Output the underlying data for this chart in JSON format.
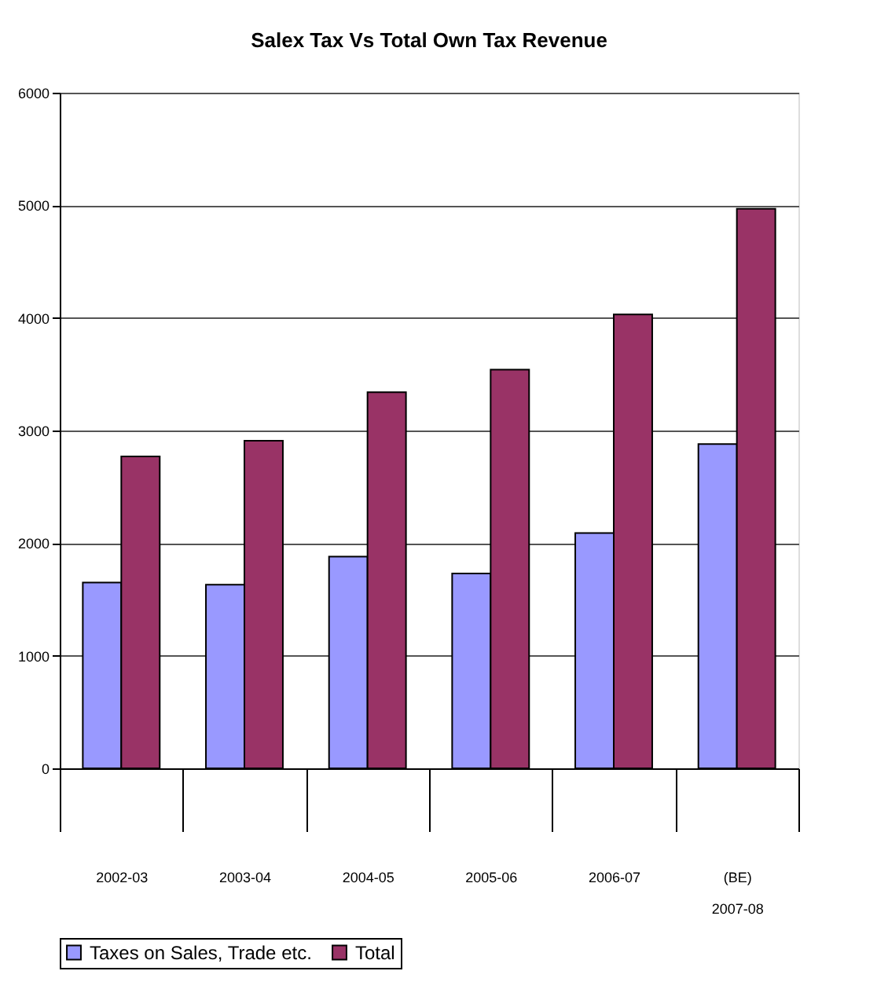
{
  "chart_data": {
    "type": "bar",
    "title": "Salex Tax Vs Total Own Tax Revenue",
    "categories": [
      "2002-03",
      "2003-04",
      "2004-05",
      "2005-06",
      "2006-07",
      "(BE)\n2007-08"
    ],
    "series": [
      {
        "name": "Taxes on Sales, Trade etc.",
        "color": "#9999ff",
        "values": [
          1650,
          1630,
          1880,
          1730,
          2090,
          2880
        ]
      },
      {
        "name": "Total",
        "color": "#993366",
        "values": [
          2770,
          2910,
          3340,
          3540,
          4030,
          4970
        ]
      }
    ],
    "ylim": [
      0,
      6000
    ],
    "yticks": [
      0,
      1000,
      2000,
      3000,
      4000,
      5000,
      6000
    ],
    "grid": "y",
    "legend": "bottom"
  }
}
